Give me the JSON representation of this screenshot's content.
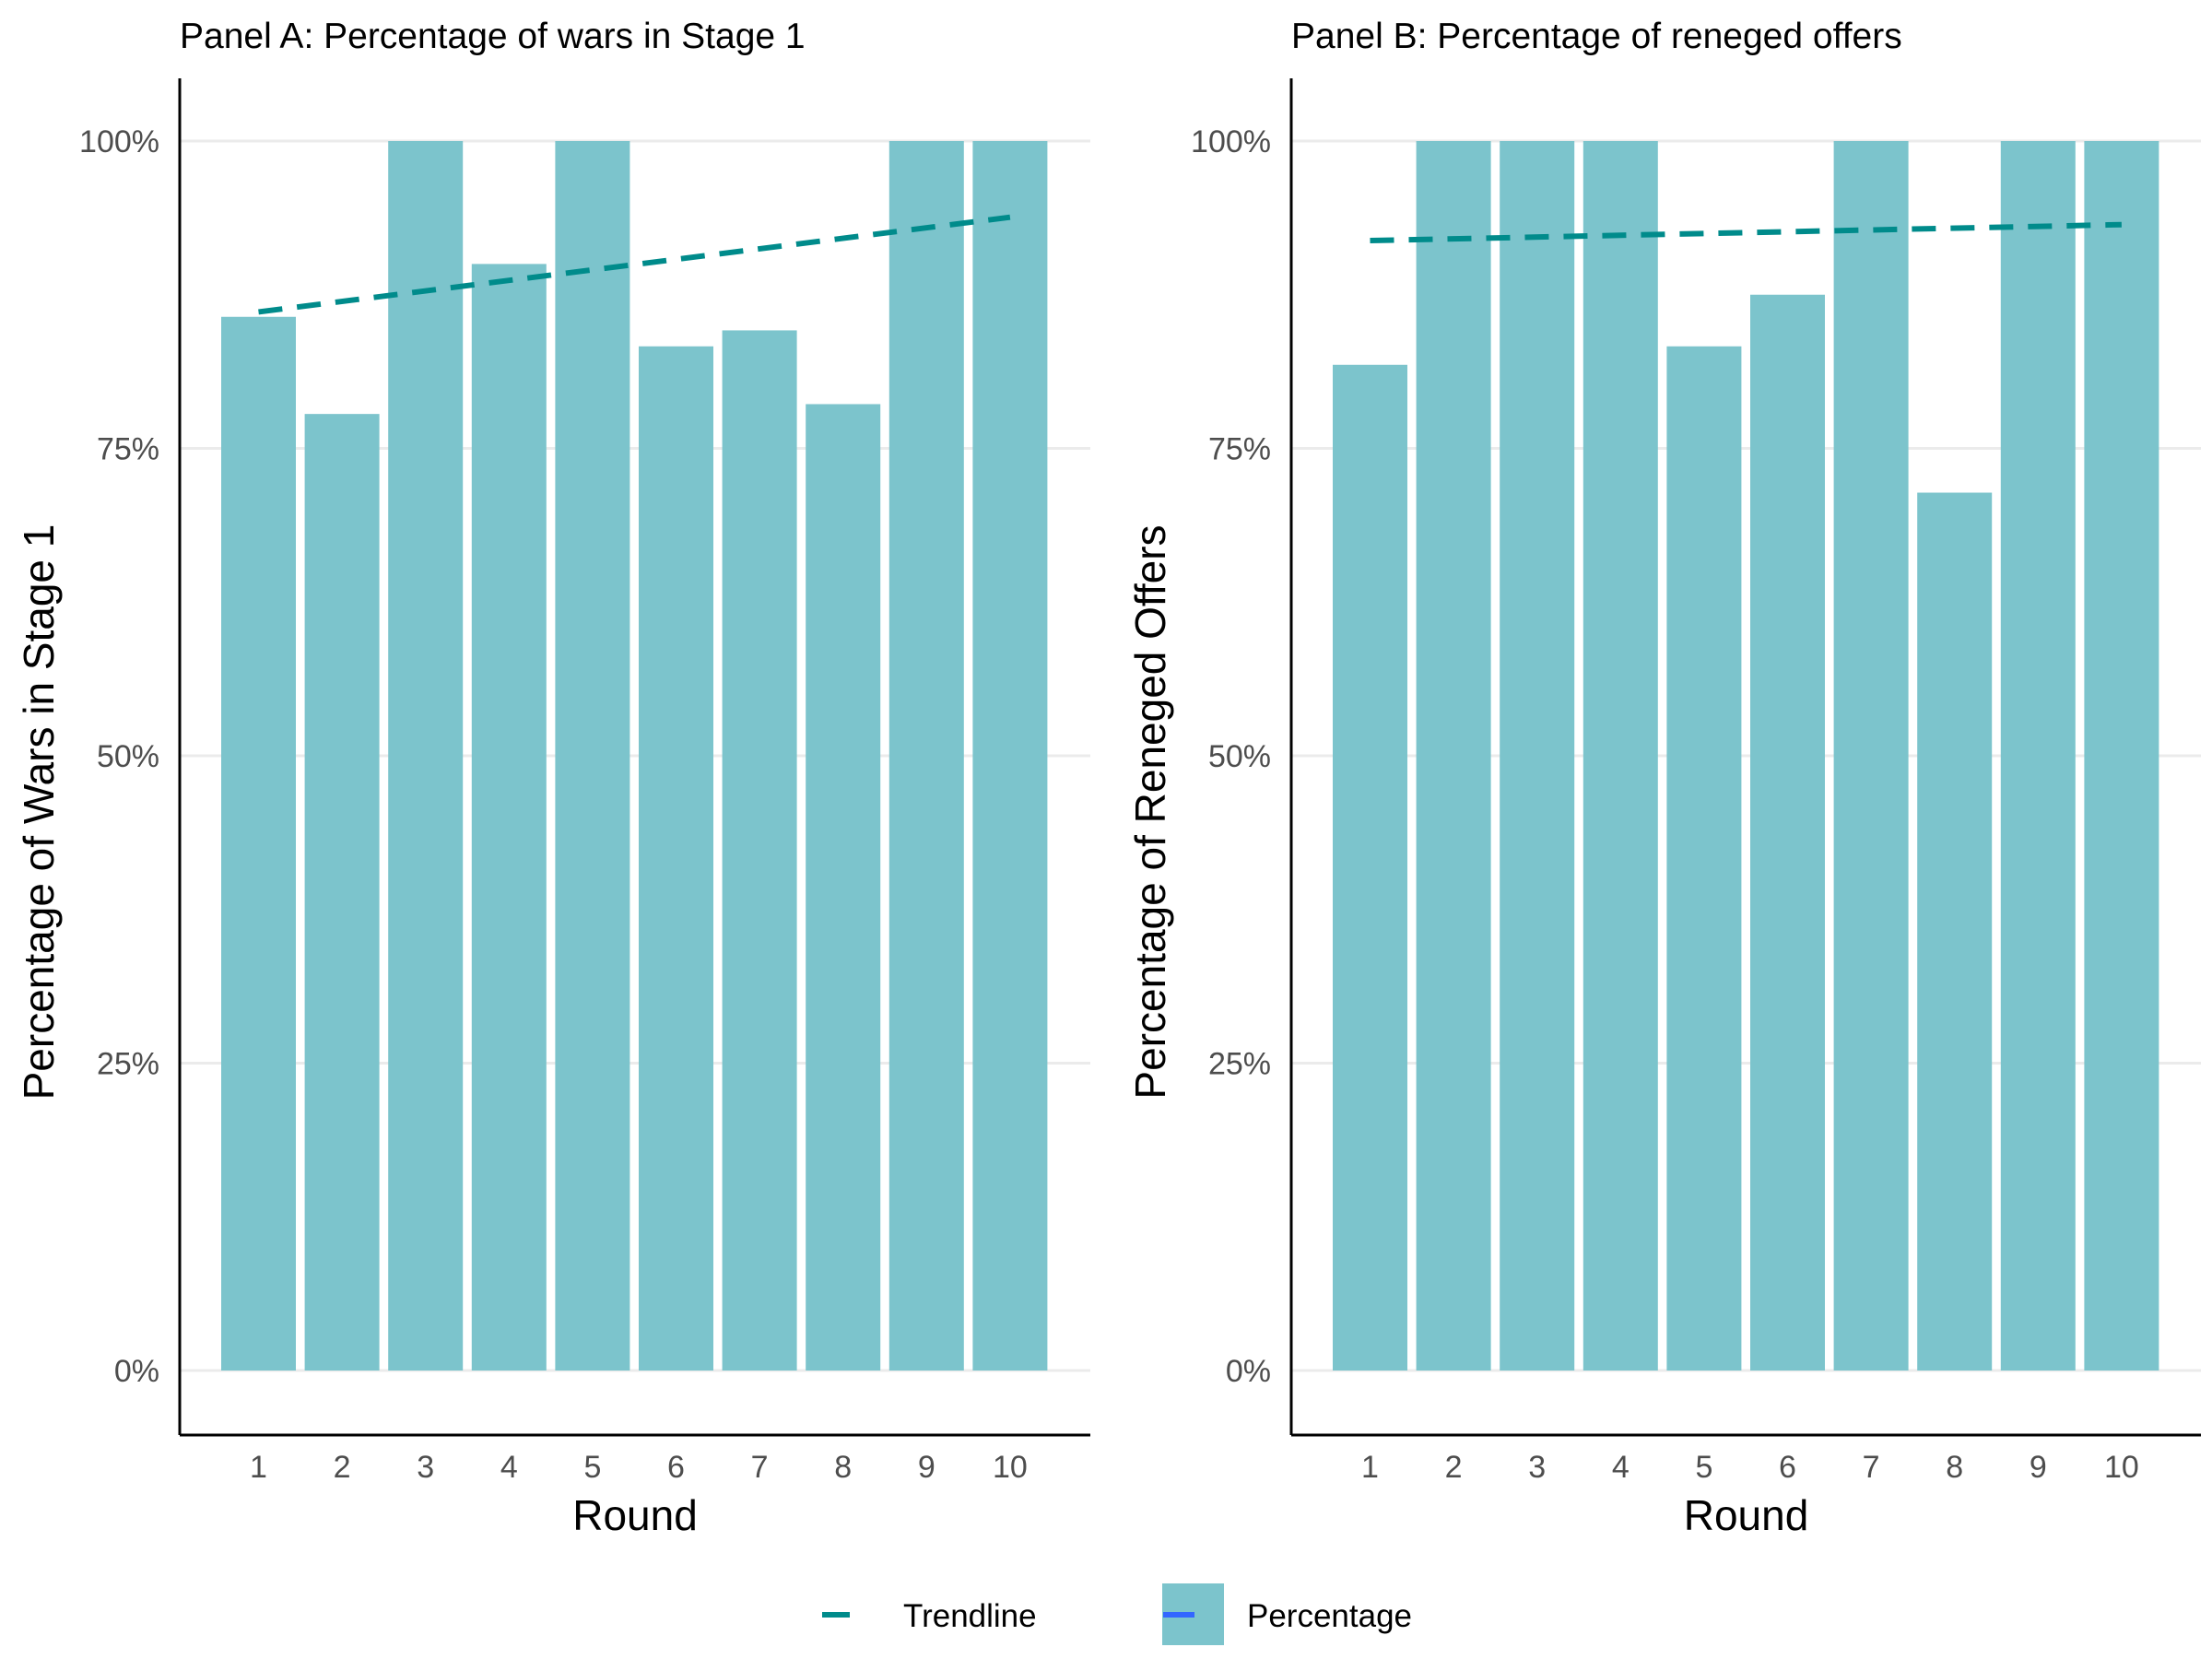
{
  "colors": {
    "bar": "#7cc4cc",
    "trendline": "#008b8b",
    "legend_swatch_line": "#3366ff",
    "grid": "#ebebeb",
    "axis": "#000000"
  },
  "chart_data": [
    {
      "type": "bar",
      "title": "Panel A:  Percentage of wars in Stage 1",
      "xlabel": "Round",
      "ylabel": "Percentage of Wars in Stage 1",
      "categories": [
        "1",
        "2",
        "3",
        "4",
        "5",
        "6",
        "7",
        "8",
        "9",
        "10"
      ],
      "series": [
        {
          "name": "Percentage",
          "values": [
            0.857,
            0.778,
            1.0,
            0.9,
            1.0,
            0.833,
            0.846,
            0.786,
            1.0,
            1.0
          ]
        }
      ],
      "trendline": {
        "name": "Trendline",
        "start": [
          1,
          0.861
        ],
        "end": [
          10,
          0.938
        ],
        "style": "dashed"
      },
      "ylim": [
        0,
        1.0
      ],
      "yticks": [
        0,
        0.25,
        0.5,
        0.75,
        1.0
      ],
      "ytick_labels": [
        "0%",
        "25%",
        "50%",
        "75%",
        "100%"
      ],
      "grid": true
    },
    {
      "type": "bar",
      "title": "Panel B: Percentage of reneged offers",
      "xlabel": "Round",
      "ylabel": "Percentage of Reneged Offers",
      "categories": [
        "1",
        "2",
        "3",
        "4",
        "5",
        "6",
        "7",
        "8",
        "9",
        "10"
      ],
      "series": [
        {
          "name": "Percentage",
          "values": [
            0.818,
            1.0,
            1.0,
            1.0,
            0.833,
            0.875,
            1.0,
            0.714,
            1.0,
            1.0
          ]
        }
      ],
      "trendline": {
        "name": "Trendline",
        "start": [
          1,
          0.919
        ],
        "end": [
          10,
          0.932
        ],
        "style": "dashed"
      },
      "ylim": [
        0,
        1.0
      ],
      "yticks": [
        0,
        0.25,
        0.5,
        0.75,
        1.0
      ],
      "ytick_labels": [
        "0%",
        "25%",
        "50%",
        "75%",
        "100%"
      ],
      "grid": true
    }
  ],
  "legend": {
    "position": "bottom",
    "items": [
      {
        "label": "Trendline"
      },
      {
        "label": "Percentage"
      }
    ]
  }
}
